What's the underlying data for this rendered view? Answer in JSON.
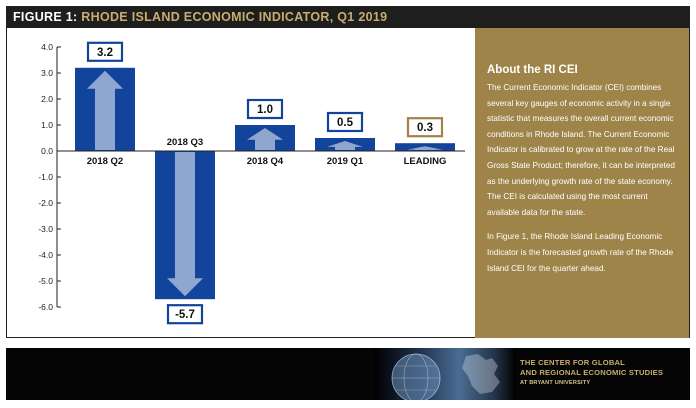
{
  "figure": {
    "title_lead": "FIGURE 1:",
    "title_rest": "RHODE ISLAND ECONOMIC INDICATOR, Q1 2019"
  },
  "chart_data": {
    "type": "bar",
    "categories": [
      "2018 Q2",
      "2018 Q3",
      "2018 Q4",
      "2019 Q1",
      "LEADING"
    ],
    "values": [
      3.2,
      -5.7,
      1.0,
      0.5,
      0.3
    ],
    "value_labels": [
      "3.2",
      "-5.7",
      "1.0",
      "0.5",
      "0.3"
    ],
    "y_ticks": [
      "4.0",
      "3.0",
      "2.0",
      "1.0",
      "0.0",
      "-1.0",
      "-2.0",
      "-3.0",
      "-4.0",
      "-5.0",
      "-6.0"
    ],
    "ylim": [
      -6.0,
      4.0
    ],
    "grid": false,
    "colors": {
      "bar": "#11449a",
      "arrow": "#8fa7cf",
      "label_border_actual": "#11449a",
      "label_border_leading": "#9e8449"
    }
  },
  "sidebar": {
    "title": "About the RI CEI",
    "paragraph1": "The Current Economic Indicator (CEI) combines several key gauges of economic activity in a single statistic that measures the overall current economic conditions in Rhode Island. The Current Economic Indicator is calibrated to grow at the rate of the Real Gross State Product; therefore, it can be interpreted as the underlying growth rate of the state economy. The CEI is calculated using the most current available data for the state.",
    "paragraph2": "In Figure 1, the Rhode Island Leading Economic Indicator is the forecasted growth rate of the Rhode Island CEI for the quarter ahead.",
    "background": "#9e8449"
  },
  "footer": {
    "org_line1": "THE CENTER FOR GLOBAL",
    "org_line2": "AND REGIONAL ECONOMIC STUDIES",
    "org_line3": "AT BRYANT UNIVERSITY",
    "text_color": "#c8ad6e"
  }
}
